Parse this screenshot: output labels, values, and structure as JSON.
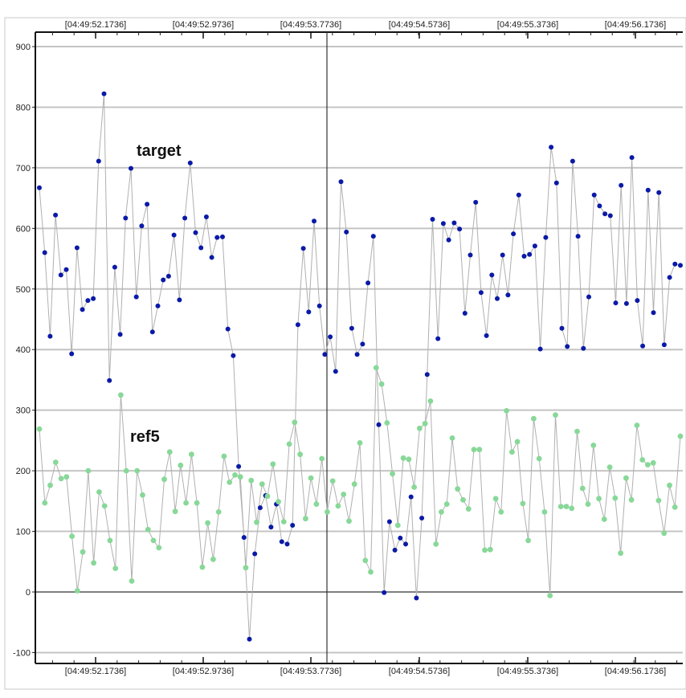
{
  "chart_data": {
    "type": "scatter",
    "x_tick_labels": [
      "[04:49:52.1736]",
      "[04:49:52.9736]",
      "[04:49:53.7736]",
      "[04:49:54.5736]",
      "[04:49:55.3736]",
      "[04:49:56.1736]"
    ],
    "y_tick_labels": [
      "900",
      "800",
      "700",
      "600",
      "500",
      "400",
      "300",
      "200",
      "100",
      "0",
      "-100"
    ],
    "ylim": [
      -110,
      925
    ],
    "grid": true,
    "cursor_at_tick": "[04:49:53.7736]",
    "colors": {
      "target": "#0a1aa6",
      "ref5": "#88d898",
      "connector": "#b0b0b0",
      "grid": "#c4c4c4"
    },
    "series": [
      {
        "name": "target",
        "color": "#0a1aa6",
        "values": [
          667,
          560,
          422,
          622,
          523,
          532,
          393,
          568,
          466,
          481,
          484,
          711,
          822,
          349,
          536,
          425,
          617,
          699,
          487,
          604,
          640,
          429,
          472,
          515,
          521,
          589,
          482,
          617,
          708,
          593,
          568,
          619,
          552,
          585,
          586,
          434,
          390,
          207,
          90,
          -78,
          63,
          139,
          159,
          107,
          145,
          83,
          79,
          110,
          441,
          567,
          462,
          612,
          472,
          392,
          421,
          364,
          677,
          594,
          435,
          392,
          409,
          510,
          587,
          276,
          -1,
          116,
          69,
          89,
          79,
          157,
          -10,
          122,
          359,
          615,
          418,
          608,
          581,
          609,
          599,
          460,
          556,
          643,
          494,
          423,
          523,
          484,
          556,
          490,
          591,
          655,
          554,
          557,
          571,
          401,
          585,
          734,
          675,
          435,
          405,
          711,
          587,
          402,
          487,
          655,
          637,
          624,
          621,
          477,
          671,
          476,
          717,
          481,
          406,
          663,
          461,
          659,
          408,
          519,
          541,
          539
        ]
      },
      {
        "name": "ref5",
        "color": "#88d898",
        "values": [
          269,
          147,
          176,
          214,
          187,
          190,
          92,
          2,
          66,
          200,
          48,
          165,
          142,
          85,
          39,
          325,
          200,
          18,
          200,
          160,
          103,
          85,
          73,
          186,
          231,
          133,
          209,
          147,
          227,
          147,
          41,
          114,
          54,
          132,
          224,
          181,
          193,
          190,
          40,
          184,
          115,
          178,
          158,
          211,
          149,
          116,
          244,
          280,
          227,
          121,
          188,
          145,
          220,
          132,
          183,
          142,
          161,
          117,
          178,
          246,
          52,
          33,
          370,
          343,
          279,
          195,
          110,
          221,
          219,
          173,
          270,
          278,
          315,
          79,
          132,
          145,
          254,
          170,
          152,
          137,
          235,
          235,
          69,
          70,
          154,
          132,
          299,
          231,
          248,
          146,
          85,
          286,
          220,
          132,
          -6,
          292,
          141,
          141,
          138,
          265,
          171,
          145,
          242,
          154,
          120,
          206,
          155,
          64,
          188,
          152,
          275,
          218,
          210,
          213,
          151,
          97,
          176,
          140,
          257
        ]
      }
    ]
  }
}
